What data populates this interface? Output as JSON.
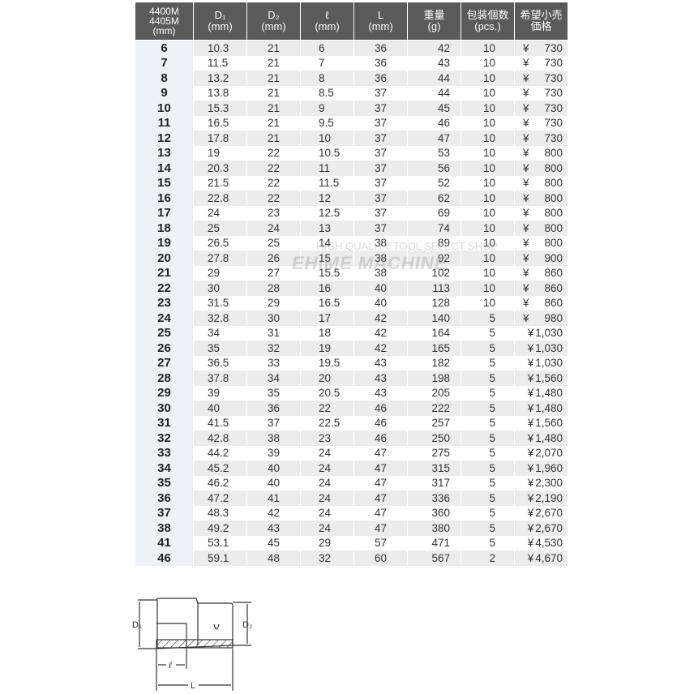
{
  "headers": [
    [
      "4400M",
      "4405M",
      "(mm)"
    ],
    [
      "D₁",
      "(mm)"
    ],
    [
      "D₂",
      "(mm)"
    ],
    [
      "ℓ",
      "(mm)"
    ],
    [
      "L",
      "(mm)"
    ],
    [
      "重量",
      "(g)"
    ],
    [
      "包装個数",
      "(pcs.)"
    ],
    [
      "希望小売",
      "価格"
    ]
  ],
  "currency": "¥",
  "rows": [
    [
      "6",
      "10.3",
      "21",
      "6",
      "36",
      "42",
      "10",
      "730"
    ],
    [
      "7",
      "11.5",
      "21",
      "7",
      "36",
      "43",
      "10",
      "730"
    ],
    [
      "8",
      "13.2",
      "21",
      "8",
      "36",
      "44",
      "10",
      "730"
    ],
    [
      "9",
      "13.8",
      "21",
      "8.5",
      "37",
      "44",
      "10",
      "730"
    ],
    [
      "10",
      "15.3",
      "21",
      "9",
      "37",
      "45",
      "10",
      "730"
    ],
    [
      "11",
      "16.5",
      "21",
      "9.5",
      "37",
      "46",
      "10",
      "730"
    ],
    [
      "12",
      "17.8",
      "21",
      "10",
      "37",
      "47",
      "10",
      "730"
    ],
    [
      "13",
      "19",
      "22",
      "10.5",
      "37",
      "53",
      "10",
      "800"
    ],
    [
      "14",
      "20.3",
      "22",
      "11",
      "37",
      "56",
      "10",
      "800"
    ],
    [
      "15",
      "21.5",
      "22",
      "11.5",
      "37",
      "52",
      "10",
      "800"
    ],
    [
      "16",
      "22.8",
      "22",
      "12",
      "37",
      "62",
      "10",
      "800"
    ],
    [
      "17",
      "24",
      "23",
      "12.5",
      "37",
      "69",
      "10",
      "800"
    ],
    [
      "18",
      "25",
      "24",
      "13",
      "37",
      "74",
      "10",
      "800"
    ],
    [
      "19",
      "26.5",
      "25",
      "14",
      "38",
      "89",
      "10",
      "800"
    ],
    [
      "20",
      "27.8",
      "26",
      "15",
      "38",
      "92",
      "10",
      "900"
    ],
    [
      "21",
      "29",
      "27",
      "15.5",
      "38",
      "102",
      "10",
      "860"
    ],
    [
      "22",
      "30",
      "28",
      "16",
      "40",
      "113",
      "10",
      "860"
    ],
    [
      "23",
      "31.5",
      "29",
      "16.5",
      "40",
      "128",
      "10",
      "860"
    ],
    [
      "24",
      "32.8",
      "30",
      "17",
      "42",
      "140",
      "5",
      "980"
    ],
    [
      "25",
      "34",
      "31",
      "18",
      "42",
      "164",
      "5",
      "1,030"
    ],
    [
      "26",
      "35",
      "32",
      "19",
      "42",
      "165",
      "5",
      "1,030"
    ],
    [
      "27",
      "36.5",
      "33",
      "19.5",
      "43",
      "182",
      "5",
      "1,030"
    ],
    [
      "28",
      "37.8",
      "34",
      "20",
      "43",
      "198",
      "5",
      "1,560"
    ],
    [
      "29",
      "39",
      "35",
      "20.5",
      "43",
      "205",
      "5",
      "1,480"
    ],
    [
      "30",
      "40",
      "36",
      "22",
      "46",
      "222",
      "5",
      "1,480"
    ],
    [
      "31",
      "41.5",
      "37",
      "22.5",
      "46",
      "257",
      "5",
      "1,560"
    ],
    [
      "32",
      "42.8",
      "38",
      "23",
      "46",
      "250",
      "5",
      "1,480"
    ],
    [
      "33",
      "44.2",
      "39",
      "24",
      "47",
      "275",
      "5",
      "2,070"
    ],
    [
      "34",
      "45.2",
      "40",
      "24",
      "47",
      "315",
      "5",
      "1,960"
    ],
    [
      "35",
      "46.2",
      "40",
      "24",
      "47",
      "317",
      "5",
      "2,300"
    ],
    [
      "36",
      "47.2",
      "41",
      "24",
      "47",
      "336",
      "5",
      "2,190"
    ],
    [
      "37",
      "48.3",
      "42",
      "24",
      "47",
      "360",
      "5",
      "2,670"
    ],
    [
      "38",
      "49.2",
      "43",
      "24",
      "47",
      "380",
      "5",
      "2,670"
    ],
    [
      "41",
      "53.1",
      "45",
      "29",
      "57",
      "471",
      "5",
      "4,530"
    ],
    [
      "46",
      "59.1",
      "48",
      "32",
      "60",
      "567",
      "2",
      "4,670"
    ]
  ],
  "watermark": {
    "line1": "HIGH QUALITY TOOL SELECT SHOP",
    "line2": "EHIME MACHINE"
  },
  "diagram": {
    "d1": "D₁",
    "d2": "D₂",
    "l_small": "ℓ",
    "l_big": "L"
  },
  "colors": {
    "header_bg": "#5a5a5a",
    "row_alt": "#ececec",
    "size_col": "#edf2f8"
  }
}
